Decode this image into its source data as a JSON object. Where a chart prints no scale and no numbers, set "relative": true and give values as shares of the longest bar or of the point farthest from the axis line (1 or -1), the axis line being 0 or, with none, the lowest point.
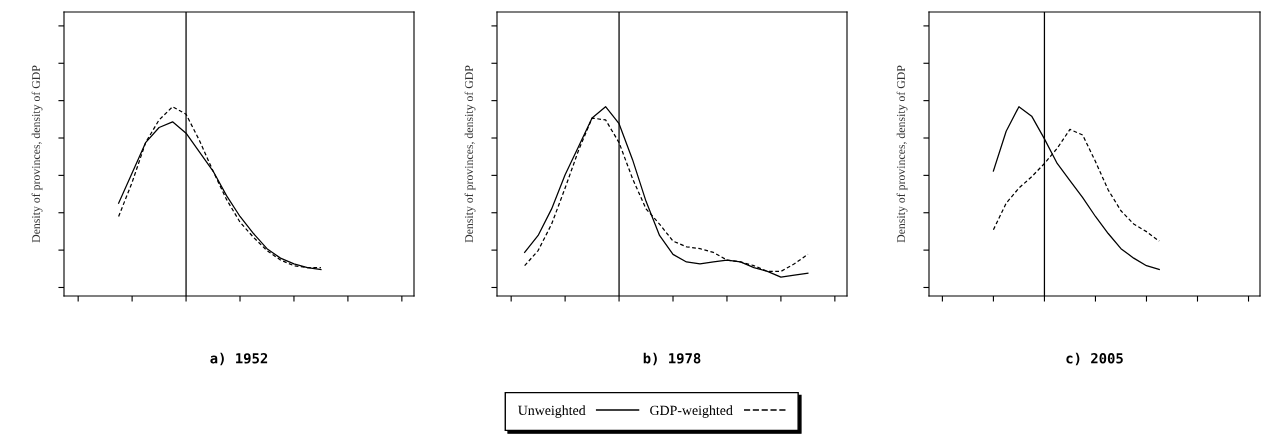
{
  "chart_data": [
    {
      "type": "line",
      "title": "a) 1952",
      "ylabel": "Density of provinces, density of GDP",
      "relative": true,
      "legend": "bottom",
      "marker": "none",
      "grid": false,
      "categories": [
        null,
        null,
        null,
        null,
        null,
        null,
        null,
        null,
        null,
        null,
        null,
        null,
        null,
        null,
        null,
        null,
        null,
        null,
        null,
        null,
        null,
        null,
        null,
        null,
        null
      ],
      "series": [
        {
          "name": "Unweighted",
          "color": "#000000",
          "line_style": "solid",
          "values": [
            null,
            null,
            null,
            0.49,
            0.65,
            0.81,
            0.89,
            0.92,
            0.86,
            0.76,
            0.66,
            0.53,
            0.42,
            0.33,
            0.25,
            0.2,
            0.17,
            0.15,
            0.14,
            null,
            null,
            null,
            null,
            null,
            null
          ]
        },
        {
          "name": "GDP-weighted",
          "color": "#000000",
          "line_style": "dashed",
          "values": [
            null,
            null,
            null,
            0.42,
            0.6,
            0.81,
            0.93,
            1.0,
            0.96,
            0.82,
            0.66,
            0.51,
            0.39,
            0.31,
            0.24,
            0.19,
            0.16,
            0.15,
            0.15,
            null,
            null,
            null,
            null,
            null,
            null
          ]
        }
      ]
    },
    {
      "type": "line",
      "title": "b) 1978",
      "ylabel": "Density of provinces, density of GDP",
      "relative": true,
      "marker": "none",
      "grid": false,
      "categories": [
        null,
        null,
        null,
        null,
        null,
        null,
        null,
        null,
        null,
        null,
        null,
        null,
        null,
        null,
        null,
        null,
        null,
        null,
        null,
        null,
        null,
        null,
        null,
        null,
        null
      ],
      "series": [
        {
          "color": "#000000",
          "line_style": "solid",
          "values": [
            null,
            0.23,
            0.32,
            0.46,
            0.64,
            0.79,
            0.94,
            1.0,
            0.91,
            0.72,
            0.5,
            0.32,
            0.22,
            0.18,
            0.17,
            0.18,
            0.19,
            0.18,
            0.15,
            0.13,
            0.1,
            0.11,
            0.12,
            null,
            null
          ]
        },
        {
          "color": "#000000",
          "line_style": "dashed",
          "values": [
            null,
            0.16,
            0.24,
            0.38,
            0.57,
            0.77,
            0.94,
            0.93,
            0.81,
            0.62,
            0.46,
            0.38,
            0.29,
            0.26,
            0.25,
            0.23,
            0.19,
            0.18,
            0.16,
            0.13,
            0.13,
            0.17,
            0.22,
            null,
            null
          ]
        }
      ]
    },
    {
      "type": "line",
      "title": "c) 2005",
      "ylabel": "Density of provinces, density of GDP",
      "relative": true,
      "marker": "none",
      "grid": false,
      "categories": [
        null,
        null,
        null,
        null,
        null,
        null,
        null,
        null,
        null,
        null,
        null,
        null,
        null,
        null,
        null,
        null,
        null,
        null,
        null,
        null,
        null,
        null,
        null,
        null,
        null
      ],
      "series": [
        {
          "color": "#000000",
          "line_style": "solid",
          "values": [
            null,
            null,
            null,
            null,
            0.66,
            0.87,
            1.0,
            0.95,
            0.83,
            0.7,
            0.61,
            0.52,
            0.42,
            0.33,
            0.25,
            0.2,
            0.16,
            0.14,
            null,
            null,
            null,
            null,
            null,
            null,
            null
          ]
        },
        {
          "color": "#000000",
          "line_style": "dashed",
          "values": [
            null,
            null,
            null,
            null,
            0.35,
            0.49,
            0.57,
            0.63,
            0.7,
            0.78,
            0.88,
            0.85,
            0.71,
            0.56,
            0.45,
            0.38,
            0.34,
            0.29,
            null,
            null,
            null,
            null,
            null,
            null,
            null
          ]
        }
      ]
    }
  ]
}
